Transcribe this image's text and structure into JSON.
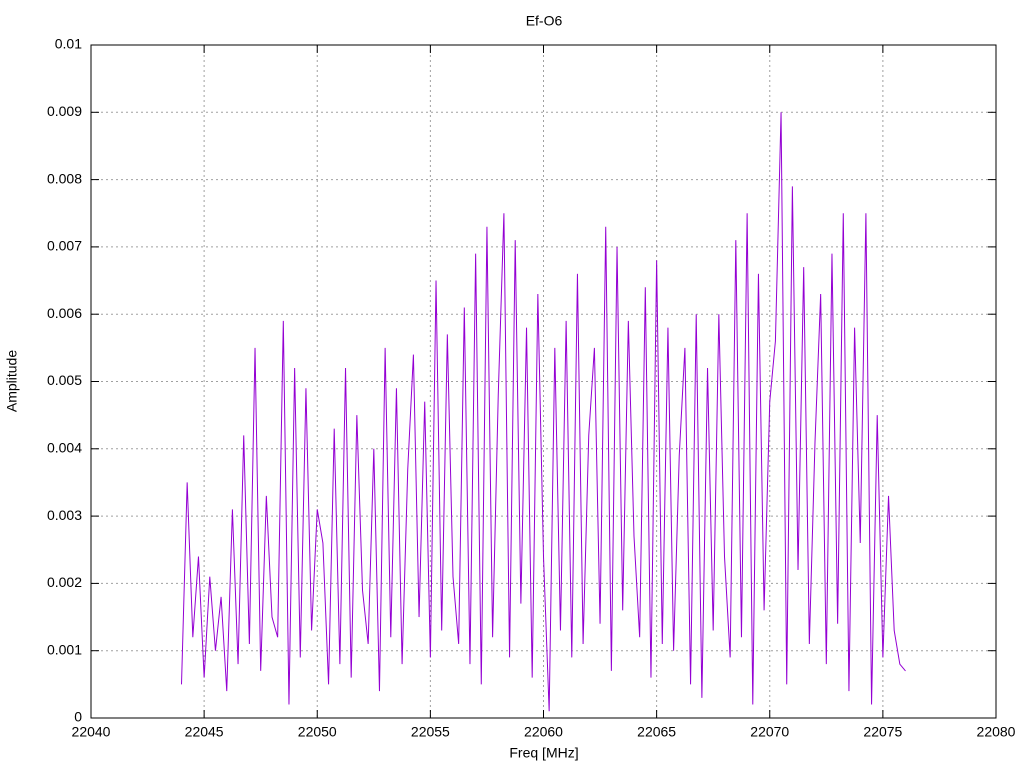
{
  "chart_data": {
    "type": "line",
    "title": "Ef-O6",
    "x_label": "Freq [MHz]",
    "y_label": "Amplitude",
    "xlim": [
      22040,
      22080
    ],
    "xticks": [
      22040,
      22045,
      22050,
      22055,
      22060,
      22065,
      22070,
      22075,
      22080
    ],
    "ylim": [
      0,
      0.01
    ],
    "yticks": [
      0,
      0.001,
      0.002,
      0.003,
      0.004,
      0.005,
      0.006,
      0.007,
      0.008,
      0.009,
      0.01
    ],
    "grid": true,
    "series": [
      {
        "color": "#9400d3",
        "x": [
          22044,
          22044.25,
          22044.5,
          22044.75,
          22045,
          22045.25,
          22045.5,
          22045.75,
          22046,
          22046.25,
          22046.5,
          22046.75,
          22047,
          22047.25,
          22047.5,
          22047.75,
          22048,
          22048.25,
          22048.5,
          22048.75,
          22049,
          22049.25,
          22049.5,
          22049.75,
          22050,
          22050.25,
          22050.5,
          22050.75,
          22051,
          22051.25,
          22051.5,
          22051.75,
          22052,
          22052.25,
          22052.5,
          22052.75,
          22053,
          22053.25,
          22053.5,
          22053.75,
          22054,
          22054.25,
          22054.5,
          22054.75,
          22055,
          22055.25,
          22055.5,
          22055.75,
          22056,
          22056.25,
          22056.5,
          22056.75,
          22057,
          22057.25,
          22057.5,
          22057.75,
          22058,
          22058.25,
          22058.5,
          22058.75,
          22059,
          22059.25,
          22059.5,
          22059.75,
          22060,
          22060.25,
          22060.5,
          22060.75,
          22061,
          22061.25,
          22061.5,
          22061.75,
          22062,
          22062.25,
          22062.5,
          22062.75,
          22063,
          22063.25,
          22063.5,
          22063.75,
          22064,
          22064.25,
          22064.5,
          22064.75,
          22065,
          22065.25,
          22065.5,
          22065.75,
          22066,
          22066.25,
          22066.5,
          22066.75,
          22067,
          22067.25,
          22067.5,
          22067.75,
          22068,
          22068.25,
          22068.5,
          22068.75,
          22069,
          22069.25,
          22069.5,
          22069.75,
          22070,
          22070.25,
          22070.5,
          22070.75,
          22071,
          22071.25,
          22071.5,
          22071.75,
          22072,
          22072.25,
          22072.5,
          22072.75,
          22073,
          22073.25,
          22073.5,
          22073.75,
          22074,
          22074.25,
          22074.5,
          22074.75,
          22075,
          22075.25,
          22075.5,
          22075.75,
          22076
        ],
        "values": [
          0.0005,
          0.0035,
          0.0012,
          0.0024,
          0.0006,
          0.0021,
          0.001,
          0.0018,
          0.0004,
          0.0031,
          0.0008,
          0.0042,
          0.0011,
          0.0055,
          0.0007,
          0.0033,
          0.0015,
          0.0012,
          0.0059,
          0.0002,
          0.0052,
          0.0009,
          0.0049,
          0.0013,
          0.0031,
          0.0026,
          0.0005,
          0.0043,
          0.0008,
          0.0052,
          0.0006,
          0.0045,
          0.0019,
          0.0011,
          0.004,
          0.0004,
          0.0055,
          0.0012,
          0.0049,
          0.0008,
          0.0037,
          0.0054,
          0.0015,
          0.0047,
          0.0009,
          0.0065,
          0.0013,
          0.0057,
          0.0021,
          0.0011,
          0.0061,
          0.0008,
          0.0069,
          0.0005,
          0.0073,
          0.0012,
          0.0048,
          0.0075,
          0.0009,
          0.0071,
          0.0017,
          0.0058,
          0.0006,
          0.0063,
          0.0024,
          0.0001,
          0.0055,
          0.0013,
          0.0059,
          0.0009,
          0.0066,
          0.0011,
          0.0042,
          0.0055,
          0.0014,
          0.0073,
          0.0007,
          0.007,
          0.0016,
          0.0059,
          0.0027,
          0.0012,
          0.0064,
          0.0006,
          0.0068,
          0.0011,
          0.0058,
          0.001,
          0.0039,
          0.0055,
          0.0005,
          0.006,
          0.0003,
          0.0052,
          0.0013,
          0.006,
          0.0024,
          0.0009,
          0.0071,
          0.0012,
          0.0075,
          0.0002,
          0.0066,
          0.0016,
          0.0047,
          0.0056,
          0.009,
          0.0005,
          0.0079,
          0.0022,
          0.0067,
          0.0011,
          0.0041,
          0.0063,
          0.0008,
          0.0069,
          0.0014,
          0.0075,
          0.0004,
          0.0058,
          0.0026,
          0.0075,
          0.0002,
          0.0045,
          0.0009,
          0.0033,
          0.0013,
          0.0008,
          0.0007
        ]
      }
    ]
  }
}
